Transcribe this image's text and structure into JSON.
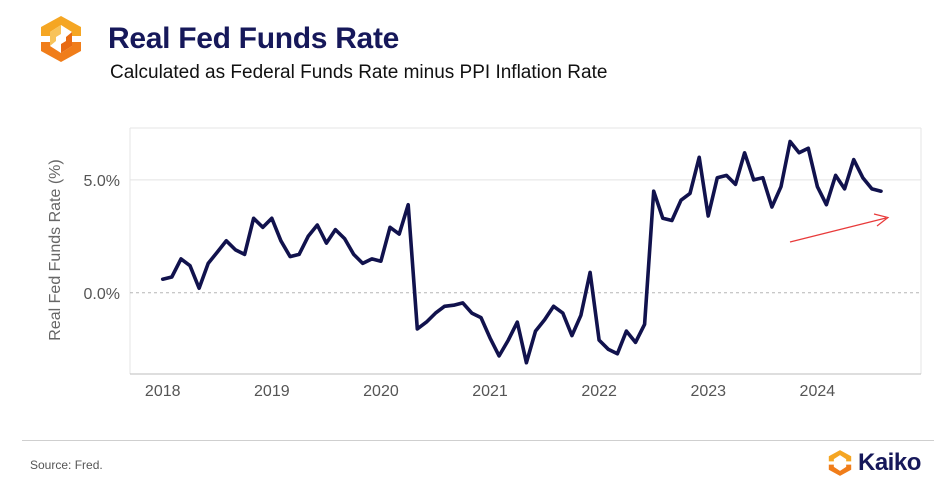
{
  "header": {
    "title": "Real Fed Funds Rate",
    "subtitle": "Calculated as Federal Funds Rate minus PPI Inflation Rate"
  },
  "footer": {
    "source": "Source: Fred.",
    "brand": "Kaiko"
  },
  "colors": {
    "line": "#11124d",
    "arrow": "#e83a3a",
    "logo_orange": "#f5a623",
    "logo_orange_dark": "#f07d1a",
    "title": "#16185a"
  },
  "icons": {
    "header_logo": "kaiko-logo-icon",
    "footer_logo": "kaiko-logo-icon",
    "trend_arrow": "trend-arrow-icon"
  },
  "chart_data": {
    "type": "line",
    "title": "",
    "xlabel": "",
    "ylabel": "Real Fed Funds Rate (%)",
    "x_ticks": [
      2018,
      2019,
      2020,
      2021,
      2022,
      2023,
      2024
    ],
    "y_ticks": [
      0,
      5
    ],
    "y_tick_labels": [
      "0.0%",
      "5.0%"
    ],
    "xlim": [
      2017.7,
      2024.95
    ],
    "ylim": [
      -3.6,
      7.3
    ],
    "grid": "horizontal",
    "annotation": "upward red trend arrow near end of series",
    "series": [
      {
        "x": [
          2018.0,
          2018.083,
          2018.167,
          2018.25,
          2018.333,
          2018.417,
          2018.5,
          2018.583,
          2018.667,
          2018.75,
          2018.833,
          2018.917,
          2019.0,
          2019.083,
          2019.167,
          2019.25,
          2019.333,
          2019.417,
          2019.5,
          2019.583,
          2019.667,
          2019.75,
          2019.833,
          2019.917,
          2020.0,
          2020.083,
          2020.167,
          2020.25,
          2020.333,
          2020.417,
          2020.5,
          2020.583,
          2020.667,
          2020.75,
          2020.833,
          2020.917,
          2021.0,
          2021.083,
          2021.167,
          2021.25,
          2021.333,
          2021.417,
          2021.5,
          2021.583,
          2021.667,
          2021.75,
          2021.833,
          2021.917,
          2022.0,
          2022.083,
          2022.167,
          2022.25,
          2022.333,
          2022.417,
          2022.5,
          2022.583,
          2022.667,
          2022.75,
          2022.833,
          2022.917,
          2023.0,
          2023.083,
          2023.167,
          2023.25,
          2023.333,
          2023.417,
          2023.5,
          2023.583,
          2023.667,
          2023.75,
          2023.833,
          2023.917,
          2024.0,
          2024.083,
          2024.167,
          2024.25,
          2024.333,
          2024.417,
          2024.5,
          2024.583
        ],
        "values": [
          0.6,
          0.7,
          1.5,
          1.2,
          0.2,
          1.3,
          1.8,
          2.3,
          1.9,
          1.7,
          3.3,
          2.9,
          3.3,
          2.3,
          1.6,
          1.7,
          2.5,
          3.0,
          2.2,
          2.8,
          2.4,
          1.7,
          1.3,
          1.5,
          1.4,
          2.9,
          2.6,
          3.9,
          -1.6,
          -1.3,
          -0.9,
          -0.6,
          -0.55,
          -0.45,
          -0.9,
          -1.1,
          -2.0,
          -2.8,
          -2.1,
          -1.3,
          -3.1,
          -1.7,
          -1.2,
          -0.6,
          -0.9,
          -1.9,
          -1.0,
          0.9,
          -2.1,
          -2.5,
          -2.7,
          -1.7,
          -2.2,
          -1.4,
          4.5,
          3.3,
          3.2,
          4.1,
          4.4,
          6.0,
          3.4,
          5.1,
          5.2,
          4.8,
          6.2,
          5.0,
          5.1,
          3.8,
          4.7,
          6.7,
          6.2,
          6.4,
          4.7,
          3.9,
          5.2,
          4.6,
          5.9,
          5.1,
          4.6,
          4.5
        ]
      }
    ]
  }
}
